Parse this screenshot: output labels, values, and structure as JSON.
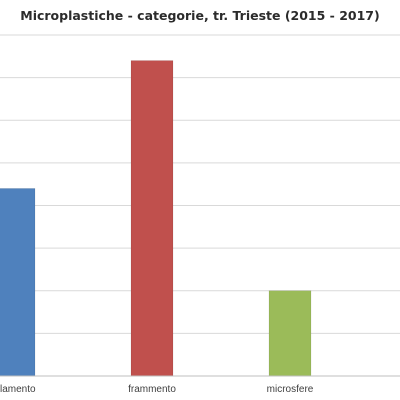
{
  "chart_data": {
    "type": "bar",
    "title": "Microplastiche - categorie, tr. Trieste (2015 - 2017)",
    "categories": [
      "filamento",
      "frammento",
      "microsfere"
    ],
    "category_labels_visible": [
      "lamento",
      "frammento",
      "microsfere"
    ],
    "values": [
      44,
      74,
      20
    ],
    "colors": [
      "#4f81bd",
      "#c0504d",
      "#9bbb59"
    ],
    "ylim": [
      0,
      80
    ],
    "ytick_step": 10,
    "grid": true,
    "legend": "none",
    "xlabel": "",
    "ylabel": ""
  }
}
